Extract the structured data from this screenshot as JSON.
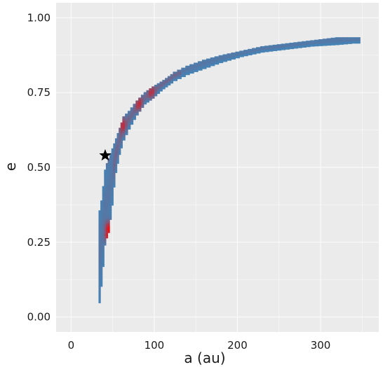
{
  "chart_data": {
    "type": "heatmap",
    "title": "",
    "xlabel": "a (au)",
    "ylabel": "e",
    "xlim": [
      -18,
      370
    ],
    "ylim": [
      -0.05,
      1.05
    ],
    "x_ticks": [
      0,
      100,
      200,
      300
    ],
    "y_ticks": [
      0.0,
      0.25,
      0.5,
      0.75,
      1.0
    ],
    "x_tick_labels": [
      "0",
      "100",
      "200",
      "300"
    ],
    "y_tick_labels": [
      "0.00",
      "0.25",
      "0.50",
      "0.75",
      "1.00"
    ],
    "grid": true,
    "colors": {
      "panel": "#ebebeb",
      "grid": "#fafafa",
      "density_low": "#4682b4",
      "density_high": "#ff0000",
      "marker": "#000000"
    },
    "density_band": [
      {
        "a": 33,
        "e_low": 0.02,
        "e_high": 0.34
      },
      {
        "a": 37,
        "e_low": 0.12,
        "e_high": 0.4
      },
      {
        "a": 41,
        "e_low": 0.25,
        "e_high": 0.5
      },
      {
        "a": 45,
        "e_low": 0.28,
        "e_high": 0.53
      },
      {
        "a": 49,
        "e_low": 0.36,
        "e_high": 0.56
      },
      {
        "a": 53,
        "e_low": 0.47,
        "e_high": 0.59
      },
      {
        "a": 58,
        "e_low": 0.54,
        "e_high": 0.63
      },
      {
        "a": 63,
        "e_low": 0.59,
        "e_high": 0.67
      },
      {
        "a": 70,
        "e_low": 0.63,
        "e_high": 0.69
      },
      {
        "a": 78,
        "e_low": 0.67,
        "e_high": 0.72
      },
      {
        "a": 88,
        "e_low": 0.71,
        "e_high": 0.75
      },
      {
        "a": 98,
        "e_low": 0.73,
        "e_high": 0.77
      },
      {
        "a": 110,
        "e_low": 0.76,
        "e_high": 0.79
      },
      {
        "a": 125,
        "e_low": 0.79,
        "e_high": 0.82
      },
      {
        "a": 140,
        "e_low": 0.81,
        "e_high": 0.84
      },
      {
        "a": 160,
        "e_low": 0.83,
        "e_high": 0.86
      },
      {
        "a": 180,
        "e_low": 0.85,
        "e_high": 0.875
      },
      {
        "a": 205,
        "e_low": 0.87,
        "e_high": 0.89
      },
      {
        "a": 230,
        "e_low": 0.885,
        "e_high": 0.905
      },
      {
        "a": 260,
        "e_low": 0.895,
        "e_high": 0.915
      },
      {
        "a": 290,
        "e_low": 0.905,
        "e_high": 0.925
      },
      {
        "a": 320,
        "e_low": 0.91,
        "e_high": 0.935
      },
      {
        "a": 340,
        "e_low": 0.915,
        "e_high": 0.935
      }
    ],
    "density_peaks": [
      {
        "a": 40,
        "e": 0.54,
        "weight": 0.6
      },
      {
        "a": 44,
        "e": 0.27,
        "weight": 1.0
      },
      {
        "a": 44,
        "e": 0.29,
        "weight": 0.9
      },
      {
        "a": 60,
        "e": 0.64,
        "weight": 0.5
      },
      {
        "a": 80,
        "e": 0.71,
        "weight": 0.5
      },
      {
        "a": 95,
        "e": 0.75,
        "weight": 0.45
      }
    ],
    "marker": {
      "a": 41,
      "e": 0.54,
      "symbol": "star"
    }
  }
}
